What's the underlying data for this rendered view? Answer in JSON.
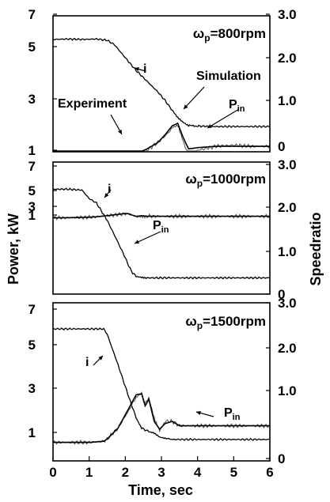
{
  "chart_data": [
    {
      "type": "line",
      "label": "ω",
      "label_sub": "p",
      "label_rest": "=800rpm",
      "x": [
        0,
        0.4,
        0.8,
        1.2,
        1.5,
        1.7,
        2.0,
        2.3,
        2.6,
        2.9,
        3.1,
        3.3,
        3.45,
        3.6,
        3.75,
        4.0,
        4.5,
        5.0,
        5.5,
        6.0
      ],
      "series": [
        {
          "name": "i",
          "axis": "right",
          "values": [
            2.42,
            2.43,
            2.42,
            2.43,
            2.4,
            2.3,
            2.0,
            1.7,
            1.45,
            1.2,
            1.0,
            0.78,
            0.62,
            0.52,
            0.45,
            0.44,
            0.43,
            0.43,
            0.43,
            0.43
          ]
        },
        {
          "name": "Experiment",
          "axis": "left",
          "values": [
            0.4,
            0.4,
            0.42,
            0.45,
            0.5,
            0.55,
            0.65,
            0.8,
            1.0,
            1.3,
            1.55,
            1.85,
            1.95,
            1.35,
            0.75,
            1.0,
            1.15,
            1.2,
            1.15,
            1.15
          ]
        },
        {
          "name": "Simulation",
          "axis": "left",
          "values": [
            0.4,
            0.4,
            0.42,
            0.45,
            0.5,
            0.58,
            0.7,
            0.85,
            1.05,
            1.3,
            1.6,
            1.95,
            2.05,
            1.5,
            1.05,
            1.1,
            1.15,
            1.15,
            1.15,
            1.15
          ]
        }
      ],
      "annotations": [
        "i",
        "Simulation",
        "Experiment",
        "P",
        "in"
      ]
    },
    {
      "type": "line",
      "label": "ω",
      "label_sub": "p",
      "label_rest": "=1000rpm",
      "x": [
        0,
        0.4,
        0.8,
        1.0,
        1.2,
        1.5,
        1.8,
        2.0,
        2.1,
        2.2,
        2.3,
        2.45,
        2.6,
        2.8,
        3.2,
        4.0,
        5.0,
        6.0
      ],
      "series": [
        {
          "name": "i",
          "axis": "right",
          "values": [
            2.42,
            2.42,
            2.4,
            2.2,
            2.1,
            1.7,
            1.2,
            0.85,
            0.65,
            0.5,
            0.42,
            0.4,
            0.38,
            0.38,
            0.38,
            0.38,
            0.38,
            0.38
          ]
        },
        {
          "name": "Experiment",
          "axis": "left",
          "values": [
            0.35,
            0.38,
            0.45,
            0.5,
            0.6,
            0.85,
            1.1,
            1.3,
            1.2,
            0.9,
            0.75,
            0.8,
            0.75,
            0.7,
            0.7,
            0.7,
            0.7,
            0.7
          ]
        },
        {
          "name": "Simulation",
          "axis": "left",
          "values": [
            0.35,
            0.38,
            0.45,
            0.5,
            0.6,
            0.85,
            1.15,
            1.35,
            1.3,
            0.95,
            0.7,
            0.85,
            0.72,
            0.7,
            0.7,
            0.7,
            0.7,
            0.7
          ]
        }
      ],
      "annotations": [
        "i",
        "P",
        "in"
      ]
    },
    {
      "type": "line",
      "label": "ω",
      "label_sub": "p",
      "label_rest": "=1500rpm",
      "x": [
        0,
        0.5,
        1.0,
        1.4,
        1.5,
        1.8,
        2.1,
        2.3,
        2.45,
        2.55,
        2.65,
        2.8,
        2.95,
        3.1,
        3.3,
        3.5,
        3.7,
        4.0,
        5.0,
        6.0
      ],
      "series": [
        {
          "name": "i",
          "axis": "right",
          "values": [
            2.42,
            2.42,
            2.42,
            2.42,
            2.3,
            1.6,
            0.9,
            0.6,
            0.45,
            0.42,
            0.4,
            0.38,
            0.32,
            0.3,
            0.28,
            0.28,
            0.28,
            0.28,
            0.28,
            0.28
          ]
        },
        {
          "name": "Experiment",
          "axis": "left",
          "values": [
            0.55,
            0.55,
            0.55,
            0.6,
            0.7,
            1.2,
            2.0,
            2.6,
            2.8,
            2.3,
            2.6,
            1.7,
            1.1,
            1.5,
            1.5,
            1.3,
            1.3,
            1.3,
            1.3,
            1.3
          ]
        },
        {
          "name": "Simulation",
          "axis": "left",
          "values": [
            0.55,
            0.55,
            0.55,
            0.6,
            0.7,
            1.2,
            2.1,
            2.7,
            2.75,
            2.2,
            2.5,
            1.5,
            1.15,
            1.4,
            1.5,
            1.3,
            1.3,
            1.3,
            1.3,
            1.3
          ]
        }
      ],
      "annotations": [
        "i",
        "P",
        "in"
      ]
    }
  ],
  "axes": {
    "x_ticks": [
      "0",
      "1",
      "2",
      "3",
      "4",
      "5",
      "6"
    ],
    "x_range": [
      0,
      6
    ],
    "left_ticks": [
      "1",
      "3",
      "5",
      "7"
    ],
    "left_range": [
      0.333,
      7
    ],
    "right_ticks": [
      "0",
      "1.0",
      "2.0",
      "3.0"
    ],
    "right_range": [
      0,
      3
    ],
    "xlabel": "Time, sec",
    "ylabel_left": "Power, kW",
    "ylabel_right": "Speedratio"
  }
}
